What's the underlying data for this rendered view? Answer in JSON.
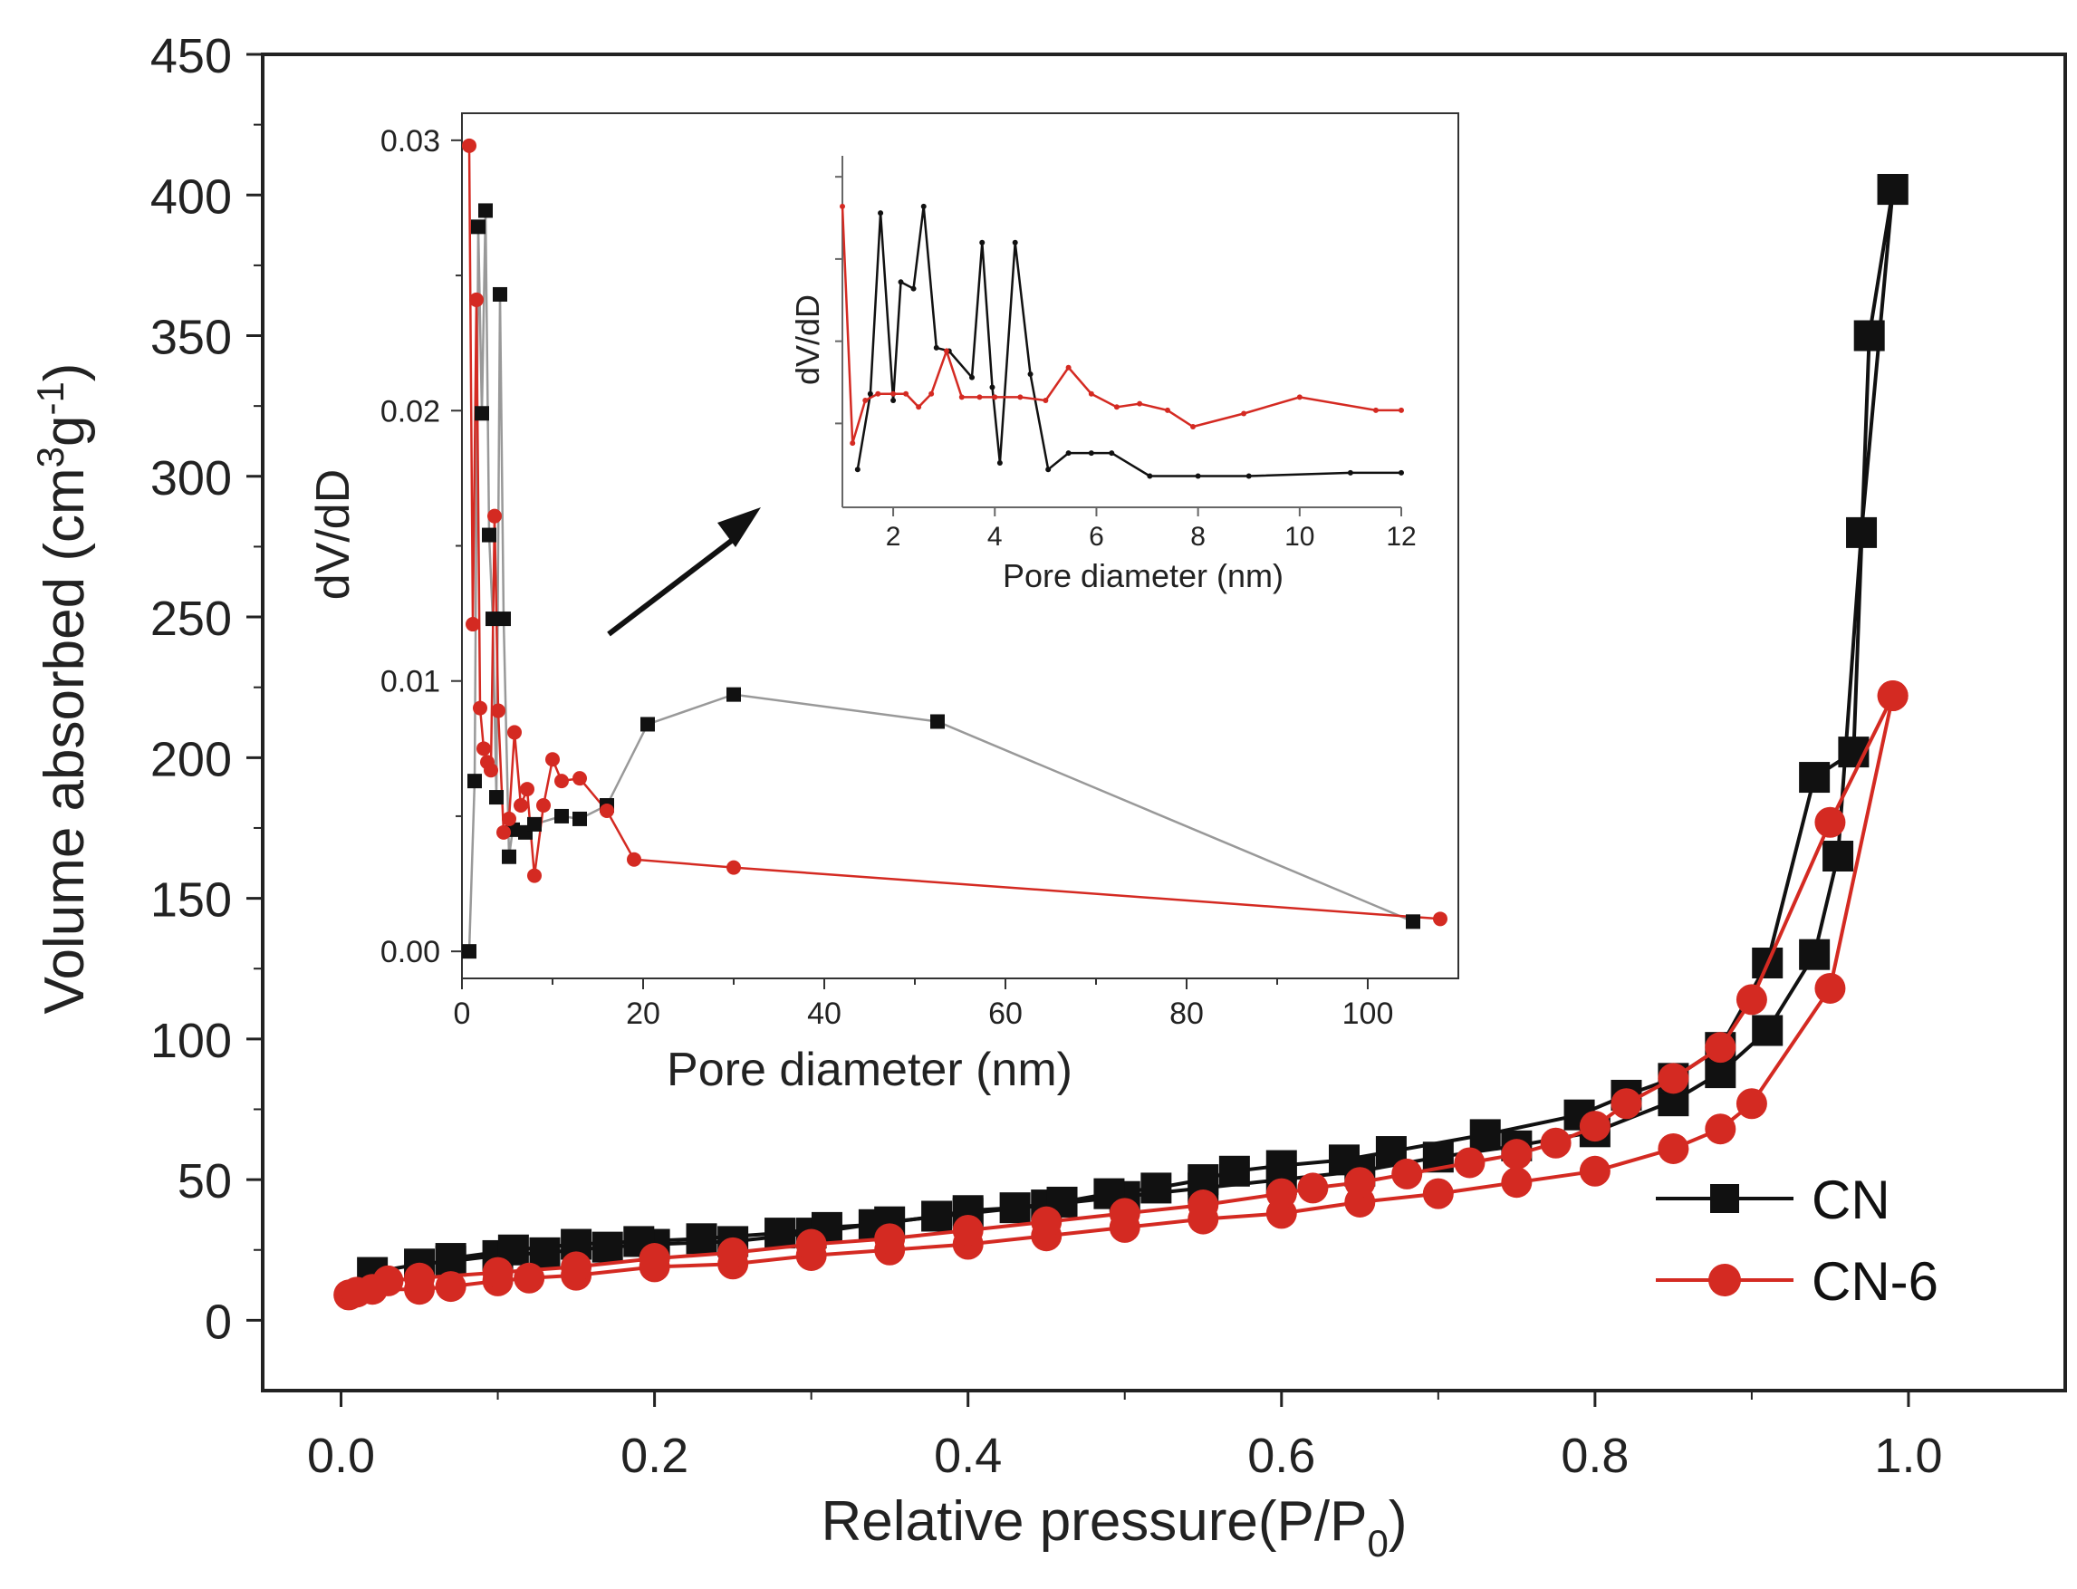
{
  "chart_data": [
    {
      "type": "scatter",
      "role": "main",
      "xlabel": "Relative pressure(P/P0)",
      "ylabel": "Volume absorbed (cm3g-1)",
      "xlim": [
        -0.05,
        1.1
      ],
      "ylim": [
        -25,
        450
      ],
      "xticks": [
        0.0,
        0.2,
        0.4,
        0.6,
        0.8,
        1.0
      ],
      "yticks": [
        0,
        50,
        100,
        150,
        200,
        250,
        300,
        350,
        400,
        450
      ],
      "x_tick_labels": [
        "0.0",
        "0.2",
        "0.4",
        "0.6",
        "0.8",
        "1.0"
      ],
      "y_tick_labels": [
        "0",
        "50",
        "100",
        "150",
        "200",
        "250",
        "300",
        "350",
        "400",
        "450"
      ],
      "legend_position": "bottom-right",
      "series": [
        {
          "name": "CN",
          "color": "#111111",
          "marker": "square",
          "adsorption": {
            "x": [
              0.02,
              0.05,
              0.07,
              0.1,
              0.13,
              0.17,
              0.2,
              0.25,
              0.3,
              0.35,
              0.4,
              0.45,
              0.5,
              0.55,
              0.6,
              0.65,
              0.7,
              0.75,
              0.8,
              0.85,
              0.88,
              0.91,
              0.94,
              0.955,
              0.97,
              0.99
            ],
            "y": [
              17,
              20,
              21,
              23,
              24,
              26,
              27,
              28,
              31,
              35,
              38,
              41,
              44,
              47,
              50,
              53,
              58,
              62,
              67,
              78,
              88,
              103,
              130,
              165,
              280,
              402
            ]
          },
          "desorption": {
            "x": [
              0.99,
              0.975,
              0.965,
              0.94,
              0.91,
              0.88,
              0.85,
              0.82,
              0.79,
              0.73,
              0.67,
              0.64,
              0.6,
              0.57,
              0.55,
              0.52,
              0.49,
              0.46,
              0.43,
              0.4,
              0.38,
              0.34,
              0.31,
              0.28,
              0.23,
              0.19,
              0.15,
              0.11,
              0.07
            ],
            "y": [
              402,
              350,
              202,
              193,
              127,
              97,
              86,
              80,
              73,
              66,
              60,
              57,
              55,
              53,
              50,
              47,
              45,
              42,
              40,
              39,
              37,
              34,
              33,
              31,
              29,
              28,
              27,
              25,
              22
            ]
          }
        },
        {
          "name": "CN-6",
          "color": "#d42a22",
          "marker": "circle",
          "adsorption": {
            "x": [
              0.005,
              0.02,
              0.05,
              0.07,
              0.1,
              0.12,
              0.15,
              0.2,
              0.25,
              0.3,
              0.35,
              0.4,
              0.45,
              0.5,
              0.55,
              0.6,
              0.65,
              0.7,
              0.75,
              0.8,
              0.85,
              0.88,
              0.9,
              0.95,
              0.99
            ],
            "y": [
              9,
              11,
              11,
              12,
              14,
              15,
              16,
              19,
              20,
              23,
              25,
              27,
              30,
              33,
              36,
              38,
              42,
              45,
              49,
              53,
              61,
              68,
              77,
              118,
              222
            ]
          },
          "desorption": {
            "x": [
              0.99,
              0.95,
              0.9,
              0.88,
              0.85,
              0.82,
              0.8,
              0.775,
              0.75,
              0.72,
              0.68,
              0.65,
              0.62,
              0.6,
              0.55,
              0.5,
              0.45,
              0.4,
              0.35,
              0.3,
              0.25,
              0.2,
              0.15,
              0.1,
              0.05,
              0.03,
              0.01
            ],
            "y": [
              222,
              177,
              114,
              97,
              86,
              77,
              69,
              63,
              59,
              56,
              52,
              49,
              47,
              45,
              41,
              38,
              35,
              32,
              29,
              27,
              24,
              22,
              19,
              17,
              15,
              14,
              10
            ]
          }
        }
      ]
    },
    {
      "type": "line",
      "role": "inset",
      "xlabel": "Pore diameter (nm)",
      "ylabel": "dV/dD",
      "xlim": [
        0,
        110
      ],
      "ylim": [
        -0.001,
        0.031
      ],
      "xticks": [
        0,
        20,
        40,
        60,
        80,
        100
      ],
      "yticks": [
        0.0,
        0.01,
        0.02,
        0.03
      ],
      "x_tick_labels": [
        "0",
        "20",
        "40",
        "60",
        "80",
        "100"
      ],
      "y_tick_labels": [
        "0.00",
        "0.01",
        "0.02",
        "0.03"
      ],
      "series": [
        {
          "name": "CN",
          "color": "#111111",
          "line_color": "#999999",
          "marker": "square",
          "x": [
            0.8,
            1.4,
            1.8,
            2.2,
            2.6,
            3.0,
            3.4,
            3.8,
            4.2,
            4.6,
            5.2,
            5.6,
            7.0,
            8.0,
            11.0,
            13.0,
            16.0,
            20.5,
            30.0,
            52.5,
            105.0
          ],
          "y": [
            0.0,
            0.0063,
            0.0268,
            0.0199,
            0.0274,
            0.0154,
            0.0123,
            0.0057,
            0.0243,
            0.0123,
            0.0035,
            0.0045,
            0.0044,
            0.0047,
            0.005,
            0.0049,
            0.0054,
            0.0084,
            0.0095,
            0.0085,
            0.0011
          ]
        },
        {
          "name": "CN-6",
          "color": "#d42a22",
          "line_color": "#d42a22",
          "marker": "circle",
          "x": [
            0.8,
            1.2,
            1.6,
            2.0,
            2.4,
            2.8,
            3.2,
            3.6,
            4.0,
            4.6,
            5.2,
            5.8,
            6.5,
            7.2,
            8.0,
            9.0,
            10.0,
            11.0,
            13.0,
            16.0,
            19.0,
            30.0,
            108.0
          ],
          "y": [
            0.0298,
            0.0121,
            0.0241,
            0.009,
            0.0075,
            0.007,
            0.0067,
            0.0161,
            0.0089,
            0.0044,
            0.0049,
            0.0081,
            0.0054,
            0.006,
            0.0028,
            0.0054,
            0.0071,
            0.0063,
            0.0064,
            0.0052,
            0.0034,
            0.0031,
            0.0012
          ]
        }
      ]
    },
    {
      "type": "line",
      "role": "inset-zoom",
      "xlabel": "Pore diameter (nm)",
      "ylabel": "dV/dD",
      "xlim": [
        1,
        12
      ],
      "ylim": [
        0,
        1
      ],
      "xticks": [
        2,
        4,
        6,
        8,
        10,
        12
      ],
      "x_tick_labels": [
        "2",
        "4",
        "6",
        "8",
        "10",
        "12"
      ],
      "series": [
        {
          "name": "CN",
          "color": "#111111",
          "x": [
            1.3,
            1.55,
            1.75,
            2.0,
            2.15,
            2.4,
            2.6,
            2.85,
            3.1,
            3.55,
            3.75,
            3.95,
            4.1,
            4.4,
            4.7,
            5.05,
            5.45,
            5.9,
            6.3,
            7.05,
            8.0,
            9.0,
            11.0,
            12.0
          ],
          "y": [
            0.06,
            0.29,
            0.84,
            0.27,
            0.63,
            0.61,
            0.86,
            0.43,
            0.42,
            0.34,
            0.75,
            0.31,
            0.08,
            0.75,
            0.35,
            0.06,
            0.11,
            0.11,
            0.11,
            0.04,
            0.04,
            0.04,
            0.05,
            0.05
          ]
        },
        {
          "name": "CN-6",
          "color": "#d42a22",
          "x": [
            1.0,
            1.2,
            1.45,
            1.7,
            2.0,
            2.25,
            2.5,
            2.75,
            3.05,
            3.35,
            3.7,
            4.0,
            4.5,
            5.0,
            5.45,
            5.9,
            6.4,
            6.85,
            7.4,
            7.9,
            8.9,
            10.0,
            11.5,
            12.0
          ],
          "y": [
            0.86,
            0.14,
            0.27,
            0.29,
            0.29,
            0.29,
            0.25,
            0.29,
            0.42,
            0.28,
            0.28,
            0.28,
            0.28,
            0.27,
            0.37,
            0.29,
            0.25,
            0.26,
            0.24,
            0.19,
            0.23,
            0.28,
            0.24,
            0.24
          ]
        }
      ]
    }
  ]
}
